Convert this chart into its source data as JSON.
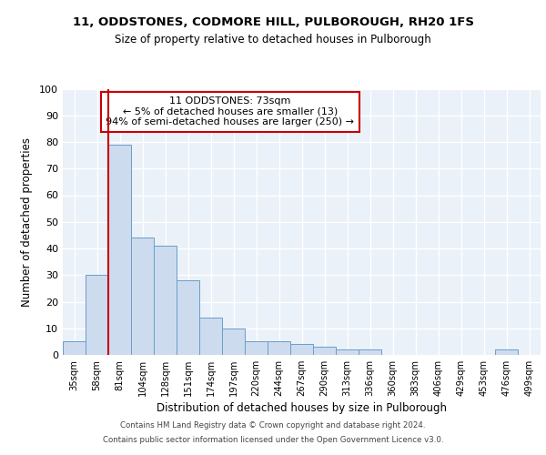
{
  "title1": "11, ODDSTONES, CODMORE HILL, PULBOROUGH, RH20 1FS",
  "title2": "Size of property relative to detached houses in Pulborough",
  "xlabel": "Distribution of detached houses by size in Pulborough",
  "ylabel": "Number of detached properties",
  "bins": [
    "35sqm",
    "58sqm",
    "81sqm",
    "104sqm",
    "128sqm",
    "151sqm",
    "174sqm",
    "197sqm",
    "220sqm",
    "244sqm",
    "267sqm",
    "290sqm",
    "313sqm",
    "336sqm",
    "360sqm",
    "383sqm",
    "406sqm",
    "429sqm",
    "453sqm",
    "476sqm",
    "499sqm"
  ],
  "values": [
    5,
    30,
    79,
    44,
    41,
    28,
    14,
    10,
    5,
    5,
    4,
    3,
    2,
    2,
    0,
    0,
    0,
    0,
    0,
    2,
    0
  ],
  "bar_color": "#ccdcee",
  "bar_edge_color": "#6a9dca",
  "vline_color": "#cc0000",
  "vline_bin_index": 2,
  "annotation_text_line1": "11 ODDSTONES: 73sqm",
  "annotation_text_line2": "← 5% of detached houses are smaller (13)",
  "annotation_text_line3": "94% of semi-detached houses are larger (250) →",
  "annotation_box_color": "#ffffff",
  "annotation_box_edge": "#cc0000",
  "ylim": [
    0,
    100
  ],
  "yticks": [
    0,
    10,
    20,
    30,
    40,
    50,
    60,
    70,
    80,
    90,
    100
  ],
  "bg_color": "#eaf1f8",
  "grid_color": "#ffffff",
  "footer1": "Contains HM Land Registry data © Crown copyright and database right 2024.",
  "footer2": "Contains public sector information licensed under the Open Government Licence v3.0."
}
